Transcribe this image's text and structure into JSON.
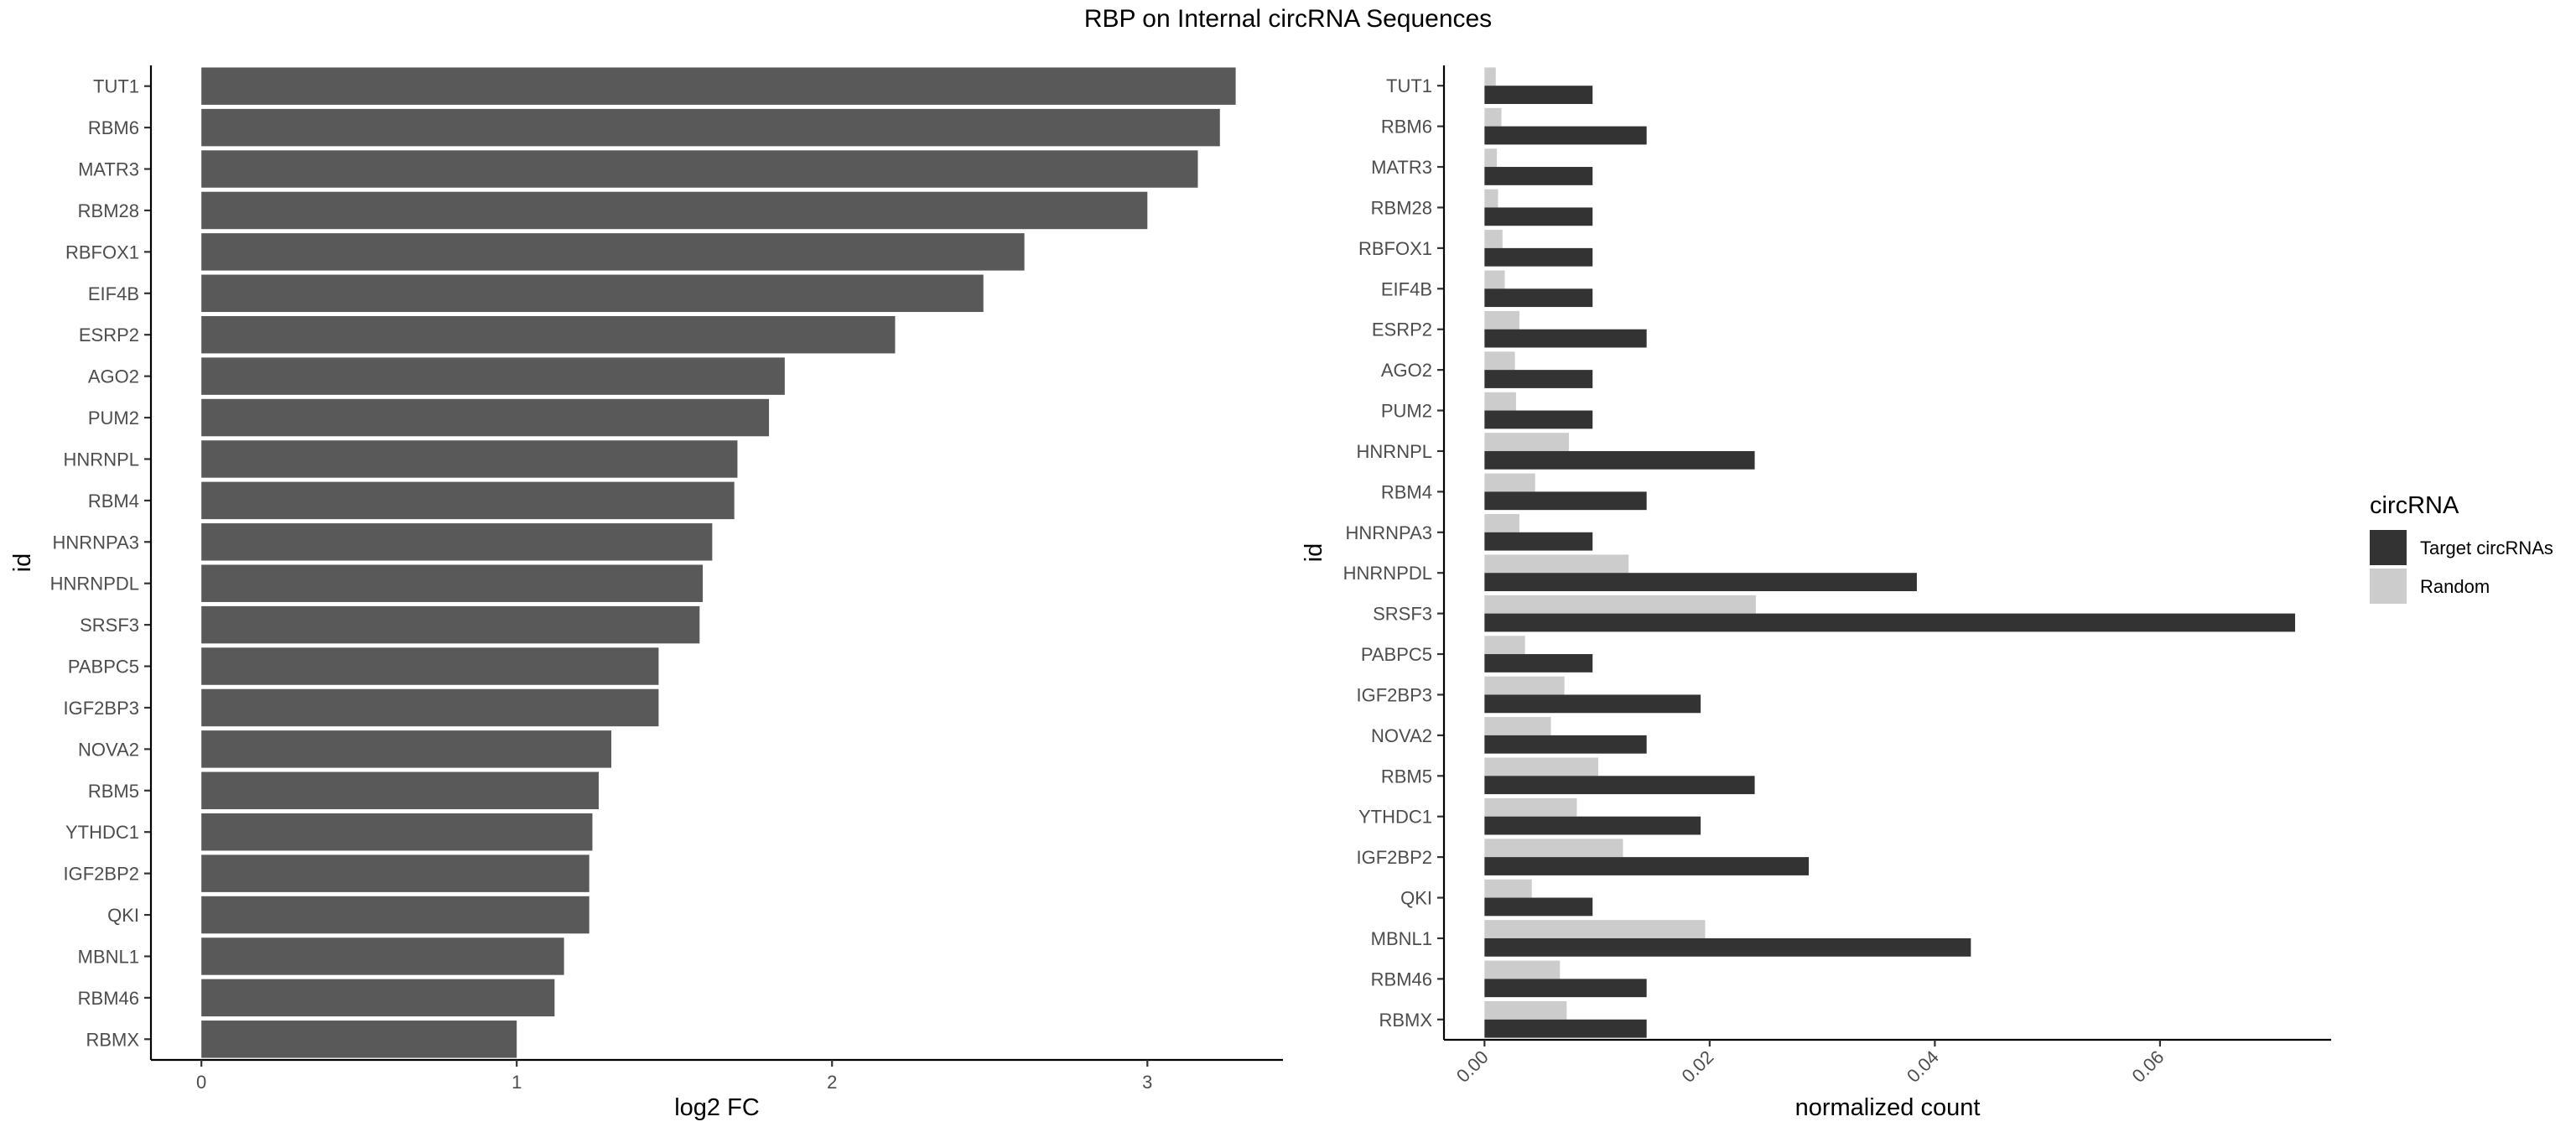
{
  "figure": {
    "title": "RBP on Internal circRNA Sequences"
  },
  "chart_data": [
    {
      "type": "bar",
      "orientation": "horizontal",
      "xlabel": "log2 FC",
      "ylabel": "id",
      "xlim": [
        -0.16,
        3.43
      ],
      "xticks": [
        0,
        1,
        2,
        3
      ],
      "bar_color": "#595959",
      "categories": [
        "TUT1",
        "RBM6",
        "MATR3",
        "RBM28",
        "RBFOX1",
        "EIF4B",
        "ESRP2",
        "AGO2",
        "PUM2",
        "HNRNPL",
        "RBM4",
        "HNRNPA3",
        "HNRNPDL",
        "SRSF3",
        "PABPC5",
        "IGF2BP3",
        "NOVA2",
        "RBM5",
        "YTHDC1",
        "IGF2BP2",
        "QKI",
        "MBNL1",
        "RBM46",
        "RBMX"
      ],
      "values": [
        3.28,
        3.23,
        3.16,
        3.0,
        2.61,
        2.48,
        2.2,
        1.85,
        1.8,
        1.7,
        1.69,
        1.62,
        1.59,
        1.58,
        1.45,
        1.45,
        1.3,
        1.26,
        1.24,
        1.23,
        1.23,
        1.15,
        1.12,
        1.0
      ],
      "grid": false
    },
    {
      "type": "bar",
      "orientation": "horizontal",
      "grouped": true,
      "xlabel": "normalized count",
      "ylabel": "id",
      "xlim": [
        -0.0036,
        0.0752
      ],
      "xticks": [
        0.0,
        0.02,
        0.04,
        0.06
      ],
      "xtick_labels": [
        "0.00",
        "0.02",
        "0.04",
        "0.06"
      ],
      "grid": false,
      "legend": {
        "title": "circRNA",
        "placement": "right"
      },
      "categories": [
        "TUT1",
        "RBM6",
        "MATR3",
        "RBM28",
        "RBFOX1",
        "EIF4B",
        "ESRP2",
        "AGO2",
        "PUM2",
        "HNRNPL",
        "RBM4",
        "HNRNPA3",
        "HNRNPDL",
        "SRSF3",
        "PABPC5",
        "IGF2BP3",
        "NOVA2",
        "RBM5",
        "YTHDC1",
        "IGF2BP2",
        "QKI",
        "MBNL1",
        "RBM46",
        "RBMX"
      ],
      "series": [
        {
          "name": "Target circRNAs",
          "color": "#333333",
          "values": [
            0.0096,
            0.0144,
            0.0096,
            0.0096,
            0.0096,
            0.0096,
            0.0144,
            0.0096,
            0.0096,
            0.024,
            0.0144,
            0.0096,
            0.0384,
            0.072,
            0.0096,
            0.0192,
            0.0144,
            0.024,
            0.0192,
            0.0288,
            0.0096,
            0.0432,
            0.0144,
            0.0144
          ]
        },
        {
          "name": "Random",
          "color": "#cccccc",
          "values": [
            0.001,
            0.0015,
            0.0011,
            0.0012,
            0.0016,
            0.0018,
            0.0031,
            0.0027,
            0.0028,
            0.0075,
            0.0045,
            0.0031,
            0.0128,
            0.0241,
            0.0036,
            0.0071,
            0.0059,
            0.0101,
            0.0082,
            0.0123,
            0.0042,
            0.0196,
            0.0067,
            0.0073
          ]
        }
      ]
    }
  ]
}
